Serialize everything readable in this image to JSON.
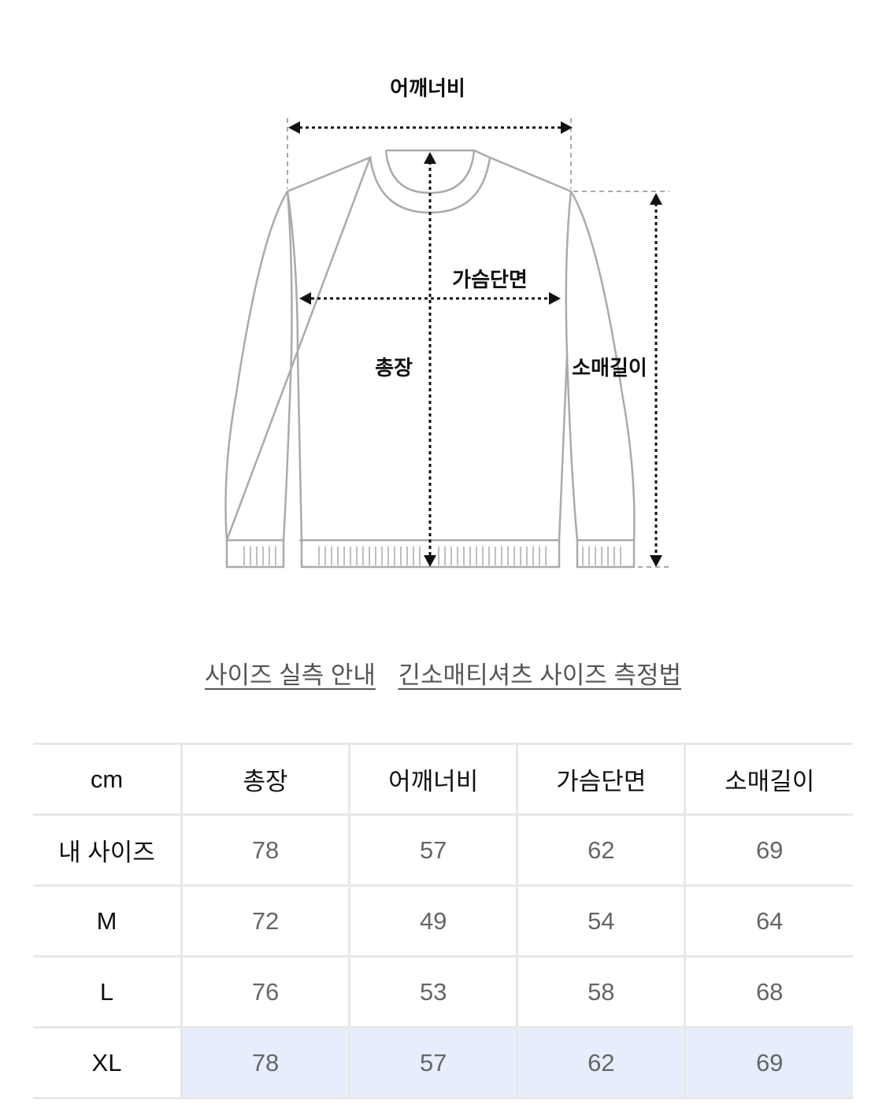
{
  "diagram": {
    "labels": {
      "shoulder": "어깨너비",
      "chest": "가슴단면",
      "length": "총장",
      "sleeve": "소매길이"
    }
  },
  "links": [
    "사이즈 실측 안내",
    "긴소매티셔츠 사이즈 측정법"
  ],
  "table": {
    "headers": [
      "cm",
      "총장",
      "어깨너비",
      "가슴단면",
      "소매길이"
    ],
    "rows": [
      {
        "label": "내 사이즈",
        "values": [
          "78",
          "57",
          "62",
          "69"
        ]
      },
      {
        "label": "M",
        "values": [
          "72",
          "49",
          "54",
          "64"
        ]
      },
      {
        "label": "L",
        "values": [
          "76",
          "53",
          "58",
          "68"
        ]
      },
      {
        "label": "XL",
        "values": [
          "78",
          "57",
          "62",
          "69"
        ],
        "highlighted": true
      }
    ]
  },
  "colors": {
    "highlight": "#e6eefc",
    "outline": "#aaaaaa"
  }
}
